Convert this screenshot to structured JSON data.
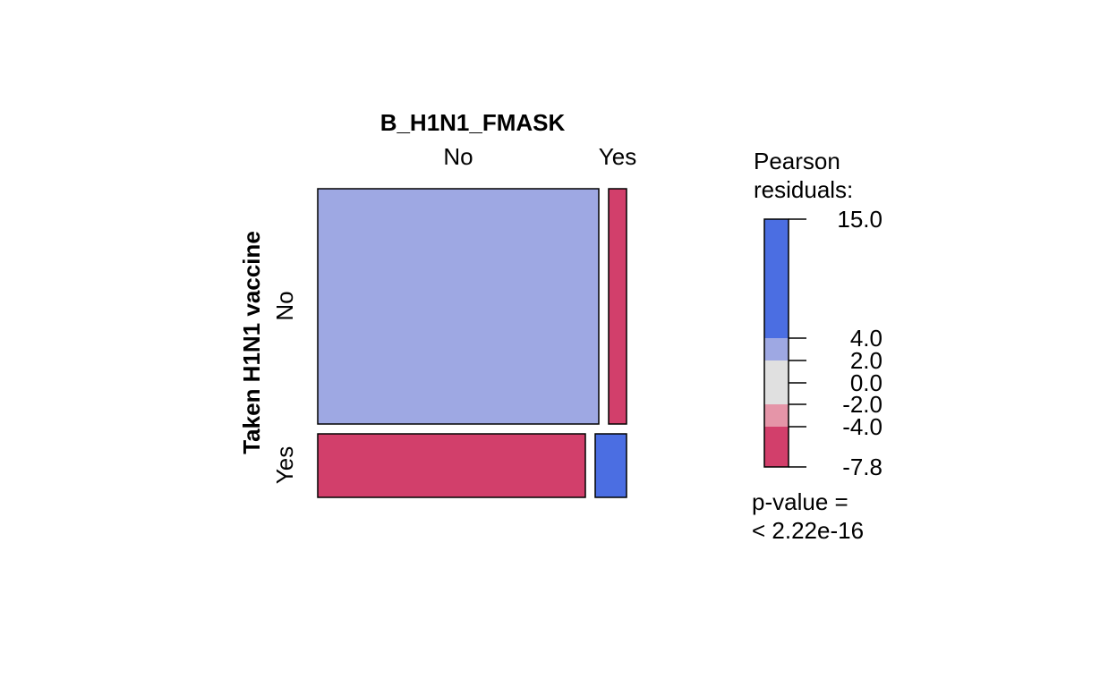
{
  "chart_data": {
    "type": "mosaic",
    "top_variable": "B_H1N1_FMASK",
    "side_variable": "Taken H1N1 vaccine",
    "top_levels": [
      "No",
      "Yes"
    ],
    "side_levels": [
      "No",
      "Yes"
    ],
    "cells": [
      {
        "row": "No",
        "col": "No",
        "fill": "#9ea8e3"
      },
      {
        "row": "No",
        "col": "Yes",
        "fill": "#d23f6b"
      },
      {
        "row": "Yes",
        "col": "No",
        "fill": "#d23f6b"
      },
      {
        "row": "Yes",
        "col": "Yes",
        "fill": "#4b6ee2"
      }
    ],
    "legend": {
      "title_line1": "Pearson",
      "title_line2": "residuals:",
      "min": -7.8,
      "max": 15.0,
      "ticks": [
        "15.0",
        "4.0",
        "2.0",
        "0.0",
        "-2.0",
        "-4.0",
        "-7.8"
      ],
      "tick_values": [
        15.0,
        4.0,
        2.0,
        0.0,
        -2.0,
        -4.0,
        -7.8
      ],
      "bands": [
        {
          "from": 4.0,
          "to": 15.0,
          "color": "#4b6ee2"
        },
        {
          "from": 2.0,
          "to": 4.0,
          "color": "#9ea8e3"
        },
        {
          "from": -2.0,
          "to": 2.0,
          "color": "#e0e0e0"
        },
        {
          "from": -4.0,
          "to": -2.0,
          "color": "#e595a8"
        },
        {
          "from": -7.8,
          "to": -4.0,
          "color": "#d23f6b"
        }
      ],
      "pvalue_line1": "p-value =",
      "pvalue_line2": "< 2.22e-16"
    }
  }
}
